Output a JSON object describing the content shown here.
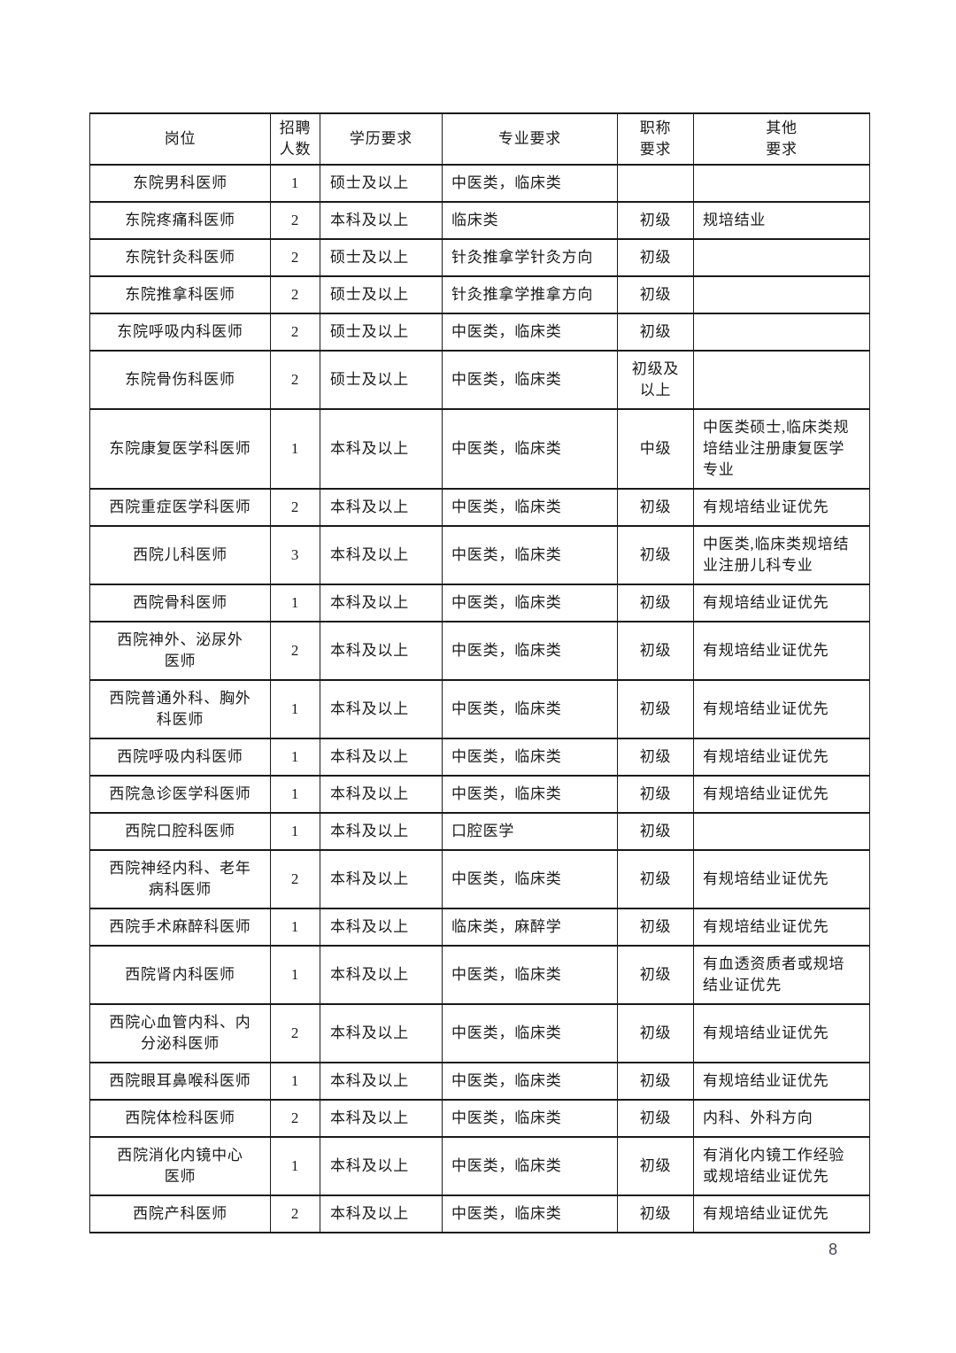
{
  "page_number": "8",
  "table": {
    "columns": [
      {
        "key": "post",
        "label": "岗位"
      },
      {
        "key": "count",
        "label": "招聘\n人数"
      },
      {
        "key": "degree",
        "label": "学历要求"
      },
      {
        "key": "major",
        "label": "专业要求"
      },
      {
        "key": "title",
        "label": "职称\n要求"
      },
      {
        "key": "other",
        "label": "其他\n要求"
      }
    ],
    "rows": [
      [
        "东院男科医师",
        "1",
        "硕士及以上",
        "中医类，临床类",
        "",
        ""
      ],
      [
        "东院疼痛科医师",
        "2",
        "本科及以上",
        "临床类",
        "初级",
        "规培结业"
      ],
      [
        "东院针灸科医师",
        "2",
        "硕士及以上",
        "针灸推拿学针灸方向",
        "初级",
        ""
      ],
      [
        "东院推拿科医师",
        "2",
        "硕士及以上",
        "针灸推拿学推拿方向",
        "初级",
        ""
      ],
      [
        "东院呼吸内科医师",
        "2",
        "硕士及以上",
        "中医类，临床类",
        "初级",
        ""
      ],
      [
        "东院骨伤科医师",
        "2",
        "硕士及以上",
        "中医类，临床类",
        "初级及\n以上",
        ""
      ],
      [
        "东院康复医学科医师",
        "1",
        "本科及以上",
        "中医类，临床类",
        "中级",
        "中医类硕士,临床类规\n培结业注册康复医学\n专业"
      ],
      [
        "西院重症医学科医师",
        "2",
        "本科及以上",
        "中医类，临床类",
        "初级",
        "有规培结业证优先"
      ],
      [
        "西院儿科医师",
        "3",
        "本科及以上",
        "中医类，临床类",
        "初级",
        "中医类,临床类规培结\n业注册儿科专业"
      ],
      [
        "西院骨科医师",
        "1",
        "本科及以上",
        "中医类，临床类",
        "初级",
        "有规培结业证优先"
      ],
      [
        "西院神外、泌尿外\n医师",
        "2",
        "本科及以上",
        "中医类，临床类",
        "初级",
        "有规培结业证优先"
      ],
      [
        "西院普通外科、胸外\n科医师",
        "1",
        "本科及以上",
        "中医类，临床类",
        "初级",
        "有规培结业证优先"
      ],
      [
        "西院呼吸内科医师",
        "1",
        "本科及以上",
        "中医类，临床类",
        "初级",
        "有规培结业证优先"
      ],
      [
        "西院急诊医学科医师",
        "1",
        "本科及以上",
        "中医类，临床类",
        "初级",
        "有规培结业证优先"
      ],
      [
        "西院口腔科医师",
        "1",
        "本科及以上",
        "口腔医学",
        "初级",
        ""
      ],
      [
        "西院神经内科、老年\n病科医师",
        "2",
        "本科及以上",
        "中医类，临床类",
        "初级",
        "有规培结业证优先"
      ],
      [
        "西院手术麻醉科医师",
        "1",
        "本科及以上",
        "临床类，麻醉学",
        "初级",
        "有规培结业证优先"
      ],
      [
        "西院肾内科医师",
        "1",
        "本科及以上",
        "中医类，临床类",
        "初级",
        "有血透资质者或规培\n结业证优先"
      ],
      [
        "西院心血管内科、内\n分泌科医师",
        "2",
        "本科及以上",
        "中医类，临床类",
        "初级",
        "有规培结业证优先"
      ],
      [
        "西院眼耳鼻喉科医师",
        "1",
        "本科及以上",
        "中医类，临床类",
        "初级",
        "有规培结业证优先"
      ],
      [
        "西院体检科医师",
        "2",
        "本科及以上",
        "中医类，临床类",
        "初级",
        "内科、外科方向"
      ],
      [
        "西院消化内镜中心\n医师",
        "1",
        "本科及以上",
        "中医类，临床类",
        "初级",
        "有消化内镜工作经验\n或规培结业证优先"
      ],
      [
        "西院产科医师",
        "2",
        "本科及以上",
        "中医类，临床类",
        "初级",
        "有规培结业证优先"
      ]
    ]
  }
}
